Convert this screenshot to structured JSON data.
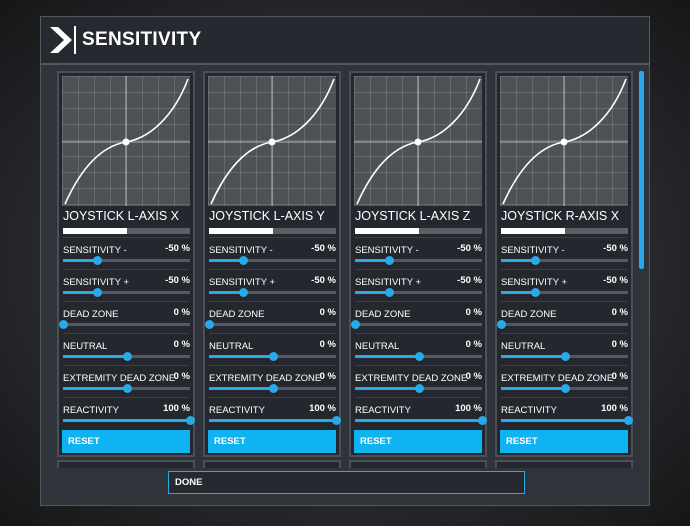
{
  "header": {
    "title": "SENSITIVITY"
  },
  "row_labels": {
    "sensitivity_minus": "SENSITIVITY -",
    "sensitivity_plus": "SENSITIVITY +",
    "dead_zone": "DEAD ZONE",
    "neutral": "NEUTRAL",
    "extremity_dead_zone": "EXTREMITY DEAD ZONE",
    "reactivity": "REACTIVITY"
  },
  "panels": [
    {
      "name": "JOYSTICK L-AXIS X",
      "axis_level": 0.5,
      "sensitivity_minus": {
        "value": "-50 %",
        "level": 0.27
      },
      "sensitivity_plus": {
        "value": "-50 %",
        "level": 0.27
      },
      "dead_zone": {
        "value": "0 %",
        "level": 0.0
      },
      "neutral": {
        "value": "0 %",
        "level": 0.5
      },
      "extremity_dead_zone": {
        "value": "0 %",
        "level": 0.5
      },
      "reactivity": {
        "value": "100 %",
        "level": 1.0
      },
      "reset_label": "RESET"
    },
    {
      "name": "JOYSTICK L-AXIS Y",
      "axis_level": 0.5,
      "sensitivity_minus": {
        "value": "-50 %",
        "level": 0.27
      },
      "sensitivity_plus": {
        "value": "-50 %",
        "level": 0.27
      },
      "dead_zone": {
        "value": "0 %",
        "level": 0.0
      },
      "neutral": {
        "value": "0 %",
        "level": 0.5
      },
      "extremity_dead_zone": {
        "value": "0 %",
        "level": 0.5
      },
      "reactivity": {
        "value": "100 %",
        "level": 1.0
      },
      "reset_label": "RESET"
    },
    {
      "name": "JOYSTICK L-AXIS Z",
      "axis_level": 0.5,
      "sensitivity_minus": {
        "value": "-50 %",
        "level": 0.27
      },
      "sensitivity_plus": {
        "value": "-50 %",
        "level": 0.27
      },
      "dead_zone": {
        "value": "0 %",
        "level": 0.0
      },
      "neutral": {
        "value": "0 %",
        "level": 0.5
      },
      "extremity_dead_zone": {
        "value": "0 %",
        "level": 0.5
      },
      "reactivity": {
        "value": "100 %",
        "level": 1.0
      },
      "reset_label": "RESET"
    },
    {
      "name": "JOYSTICK R-AXIS X",
      "axis_level": 0.5,
      "sensitivity_minus": {
        "value": "-50 %",
        "level": 0.27
      },
      "sensitivity_plus": {
        "value": "-50 %",
        "level": 0.27
      },
      "dead_zone": {
        "value": "0 %",
        "level": 0.0
      },
      "neutral": {
        "value": "0 %",
        "level": 0.5
      },
      "extremity_dead_zone": {
        "value": "0 %",
        "level": 0.5
      },
      "reactivity": {
        "value": "100 %",
        "level": 1.0
      },
      "reset_label": "RESET"
    }
  ],
  "footer": {
    "done_label": "DONE"
  },
  "colors": {
    "accent": "#29a9ea",
    "reset_button": "#0fb3f2",
    "header_bg": "#262a30",
    "panel_bg": "#24282e"
  },
  "icons": {
    "logo": "chevron-logo-icon"
  }
}
